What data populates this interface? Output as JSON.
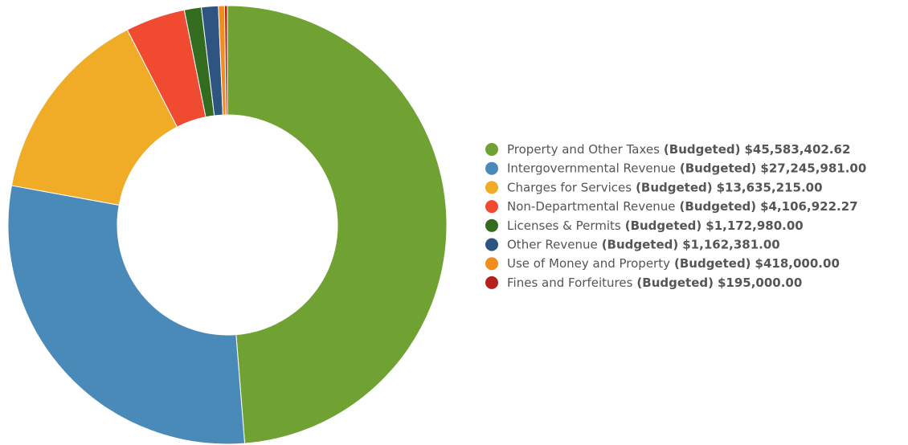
{
  "chart_data": {
    "type": "donut",
    "legend_tag": "(Budgeted)",
    "categories": [
      "Property and Other Taxes",
      "Intergovernmental Revenue",
      "Charges for Services",
      "Non-Departmental Revenue",
      "Licenses & Permits",
      "Other Revenue",
      "Use of Money and Property",
      "Fines and Forfeitures"
    ],
    "values": [
      45583402.62,
      27245981.0,
      13635215.0,
      4106922.27,
      1172980.0,
      1162381.0,
      418000.0,
      195000.0
    ],
    "value_labels": [
      "$45,583,402.62",
      "$27,245,981.00",
      "$13,635,215.00",
      "$4,106,922.27",
      "$1,172,980.00",
      "$1,162,381.00",
      "$418,000.00",
      "$195,000.00"
    ],
    "colors": [
      "#6fa233",
      "#4a8ab8",
      "#f0ab27",
      "#f04a31",
      "#336b1f",
      "#2e5582",
      "#f28c1c",
      "#b3211b"
    ],
    "legend": "right"
  }
}
